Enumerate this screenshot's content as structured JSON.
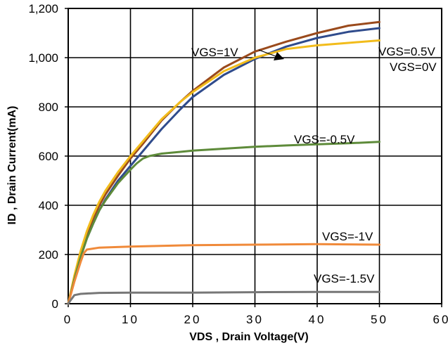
{
  "chart_data": {
    "type": "line",
    "title": "",
    "xlabel": "VDS , Drain Voltage(V)",
    "ylabel": "ID , Drain Current(mA)",
    "xlim": [
      0,
      60
    ],
    "ylim": [
      0,
      1200
    ],
    "x_ticks": [
      0,
      10,
      20,
      30,
      40,
      50,
      60
    ],
    "x_tick_labels": [
      "0",
      "10",
      "20",
      "30",
      "40",
      "50",
      "60"
    ],
    "y_ticks": [
      0,
      200,
      400,
      600,
      800,
      1000,
      1200
    ],
    "y_tick_labels": [
      "0",
      "200",
      "400",
      "600",
      "800",
      "1,000",
      "1,200"
    ],
    "grid": true,
    "legend": "none",
    "series": [
      {
        "name": "VGS=1V",
        "color": "#9a4a1c",
        "x": [
          0,
          1,
          2,
          3,
          4,
          5,
          6,
          8,
          10,
          12,
          15,
          18,
          20,
          25,
          30,
          35,
          40,
          45,
          50
        ],
        "y": [
          0,
          110,
          205,
          280,
          345,
          400,
          445,
          520,
          590,
          650,
          745,
          820,
          865,
          960,
          1025,
          1065,
          1100,
          1130,
          1145
        ]
      },
      {
        "name": "VGS=0.5V",
        "color": "#2f4b8c",
        "x": [
          0,
          1,
          2,
          3,
          4,
          5,
          6,
          8,
          10,
          12,
          15,
          18,
          20,
          25,
          30,
          35,
          40,
          45,
          50
        ],
        "y": [
          0,
          100,
          190,
          265,
          325,
          380,
          425,
          500,
          560,
          620,
          710,
          790,
          840,
          930,
          995,
          1045,
          1080,
          1105,
          1120
        ]
      },
      {
        "name": "VGS=0V",
        "color": "#f2bc1b",
        "x": [
          0,
          1,
          2,
          3,
          4,
          5,
          6,
          8,
          10,
          12,
          15,
          18,
          20,
          25,
          30,
          35,
          40,
          45,
          50
        ],
        "y": [
          0,
          115,
          215,
          295,
          360,
          415,
          460,
          535,
          600,
          660,
          750,
          820,
          860,
          945,
          1000,
          1035,
          1050,
          1060,
          1070
        ]
      },
      {
        "name": "VGS=-0.5V",
        "color": "#5e8b3a",
        "x": [
          0,
          1,
          2,
          3,
          4,
          5,
          6,
          8,
          10,
          11,
          12,
          13,
          15,
          20,
          25,
          30,
          35,
          40,
          45,
          50
        ],
        "y": [
          0,
          100,
          190,
          265,
          325,
          380,
          420,
          490,
          545,
          570,
          590,
          600,
          610,
          622,
          630,
          638,
          643,
          648,
          652,
          658
        ]
      },
      {
        "name": "VGS=-1V",
        "color": "#f08a3a",
        "x": [
          0,
          1,
          2,
          2.5,
          3,
          5,
          10,
          20,
          30,
          40,
          50
        ],
        "y": [
          0,
          90,
          170,
          205,
          220,
          228,
          232,
          238,
          240,
          242,
          240
        ]
      },
      {
        "name": "VGS=-1.5V",
        "color": "#777777",
        "x": [
          0,
          0.5,
          1,
          2,
          5,
          10,
          20,
          30,
          40,
          50
        ],
        "y": [
          0,
          18,
          35,
          40,
          44,
          45,
          45,
          47,
          48,
          48
        ]
      }
    ]
  },
  "series_labels": {
    "vgs_1v": "VGS=1V",
    "vgs_05v": "VGS=0.5V",
    "vgs_0v": "VGS=0V",
    "vgs_m05v": "VGS=-0.5V",
    "vgs_m1v": "VGS=-1V",
    "vgs_m15v": "VGS=-1.5V"
  }
}
